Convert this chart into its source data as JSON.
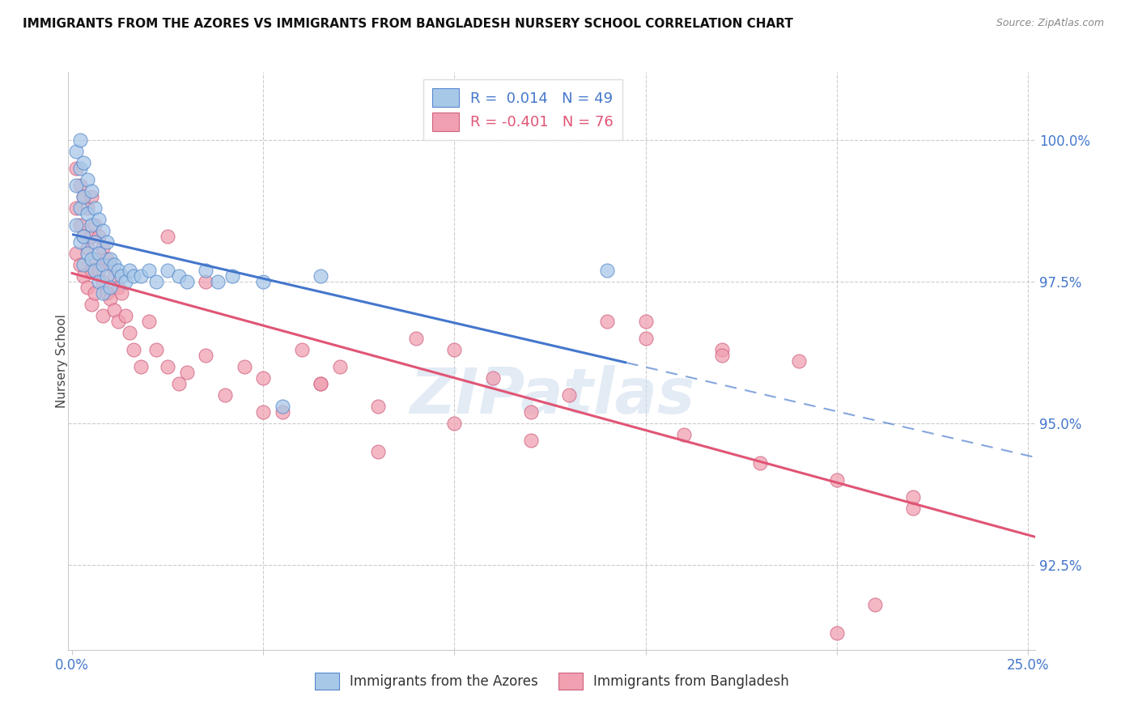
{
  "title": "IMMIGRANTS FROM THE AZORES VS IMMIGRANTS FROM BANGLADESH NURSERY SCHOOL CORRELATION CHART",
  "source": "Source: ZipAtlas.com",
  "ylabel": "Nursery School",
  "y_min": 91.0,
  "y_max": 101.2,
  "x_min": -0.001,
  "x_max": 0.252,
  "ytick_vals": [
    92.5,
    95.0,
    97.5,
    100.0
  ],
  "ytick_labels": [
    "92.5%",
    "95.0%",
    "97.5%",
    "100.0%"
  ],
  "xtick_vals": [
    0.0,
    0.05,
    0.1,
    0.15,
    0.2,
    0.25
  ],
  "xtick_labels": [
    "0.0%",
    "",
    "",
    "",
    "",
    "25.0%"
  ],
  "color_blue": "#a8c8e8",
  "color_pink": "#f0a0b0",
  "color_blue_edge": "#5588cc",
  "color_pink_edge": "#d06080",
  "color_blue_line": "#4477cc",
  "color_pink_line": "#e05575",
  "blue_line_solid_end": 0.145,
  "azores_x": [
    0.001,
    0.001,
    0.001,
    0.002,
    0.002,
    0.002,
    0.002,
    0.003,
    0.003,
    0.003,
    0.003,
    0.004,
    0.004,
    0.004,
    0.005,
    0.005,
    0.005,
    0.006,
    0.006,
    0.006,
    0.007,
    0.007,
    0.007,
    0.008,
    0.008,
    0.008,
    0.009,
    0.009,
    0.01,
    0.01,
    0.011,
    0.012,
    0.013,
    0.014,
    0.015,
    0.016,
    0.018,
    0.02,
    0.022,
    0.025,
    0.028,
    0.03,
    0.035,
    0.038,
    0.042,
    0.05,
    0.055,
    0.065,
    0.14
  ],
  "azores_y": [
    99.8,
    99.2,
    98.5,
    100.0,
    99.5,
    98.8,
    98.2,
    99.6,
    99.0,
    98.3,
    97.8,
    99.3,
    98.7,
    98.0,
    99.1,
    98.5,
    97.9,
    98.8,
    98.2,
    97.7,
    98.6,
    98.0,
    97.5,
    98.4,
    97.8,
    97.3,
    98.2,
    97.6,
    97.9,
    97.4,
    97.8,
    97.7,
    97.6,
    97.5,
    97.7,
    97.6,
    97.6,
    97.7,
    97.5,
    97.7,
    97.6,
    97.5,
    97.7,
    97.5,
    97.6,
    97.5,
    95.3,
    97.6,
    97.7
  ],
  "bangladesh_x": [
    0.001,
    0.001,
    0.001,
    0.002,
    0.002,
    0.002,
    0.003,
    0.003,
    0.003,
    0.004,
    0.004,
    0.004,
    0.005,
    0.005,
    0.005,
    0.005,
    0.006,
    0.006,
    0.006,
    0.007,
    0.007,
    0.008,
    0.008,
    0.008,
    0.009,
    0.009,
    0.01,
    0.01,
    0.011,
    0.011,
    0.012,
    0.012,
    0.013,
    0.014,
    0.015,
    0.016,
    0.018,
    0.02,
    0.022,
    0.025,
    0.028,
    0.03,
    0.035,
    0.04,
    0.045,
    0.05,
    0.055,
    0.06,
    0.065,
    0.07,
    0.08,
    0.09,
    0.1,
    0.11,
    0.12,
    0.13,
    0.14,
    0.15,
    0.16,
    0.17,
    0.18,
    0.19,
    0.2,
    0.21,
    0.22,
    0.025,
    0.035,
    0.05,
    0.065,
    0.08,
    0.1,
    0.12,
    0.15,
    0.17,
    0.2,
    0.22
  ],
  "bangladesh_y": [
    99.5,
    98.8,
    98.0,
    99.2,
    98.5,
    97.8,
    99.0,
    98.3,
    97.6,
    98.8,
    98.1,
    97.4,
    99.0,
    98.3,
    97.7,
    97.1,
    98.5,
    97.9,
    97.3,
    98.3,
    97.7,
    98.1,
    97.5,
    96.9,
    97.9,
    97.3,
    97.8,
    97.2,
    97.6,
    97.0,
    97.4,
    96.8,
    97.3,
    96.9,
    96.6,
    96.3,
    96.0,
    96.8,
    96.3,
    96.0,
    95.7,
    95.9,
    96.2,
    95.5,
    96.0,
    95.8,
    95.2,
    96.3,
    95.7,
    96.0,
    95.3,
    96.5,
    96.3,
    95.8,
    95.2,
    95.5,
    96.8,
    96.5,
    94.8,
    96.3,
    94.3,
    96.1,
    91.3,
    91.8,
    93.5,
    98.3,
    97.5,
    95.2,
    95.7,
    94.5,
    95.0,
    94.7,
    96.8,
    96.2,
    94.0,
    93.7
  ]
}
